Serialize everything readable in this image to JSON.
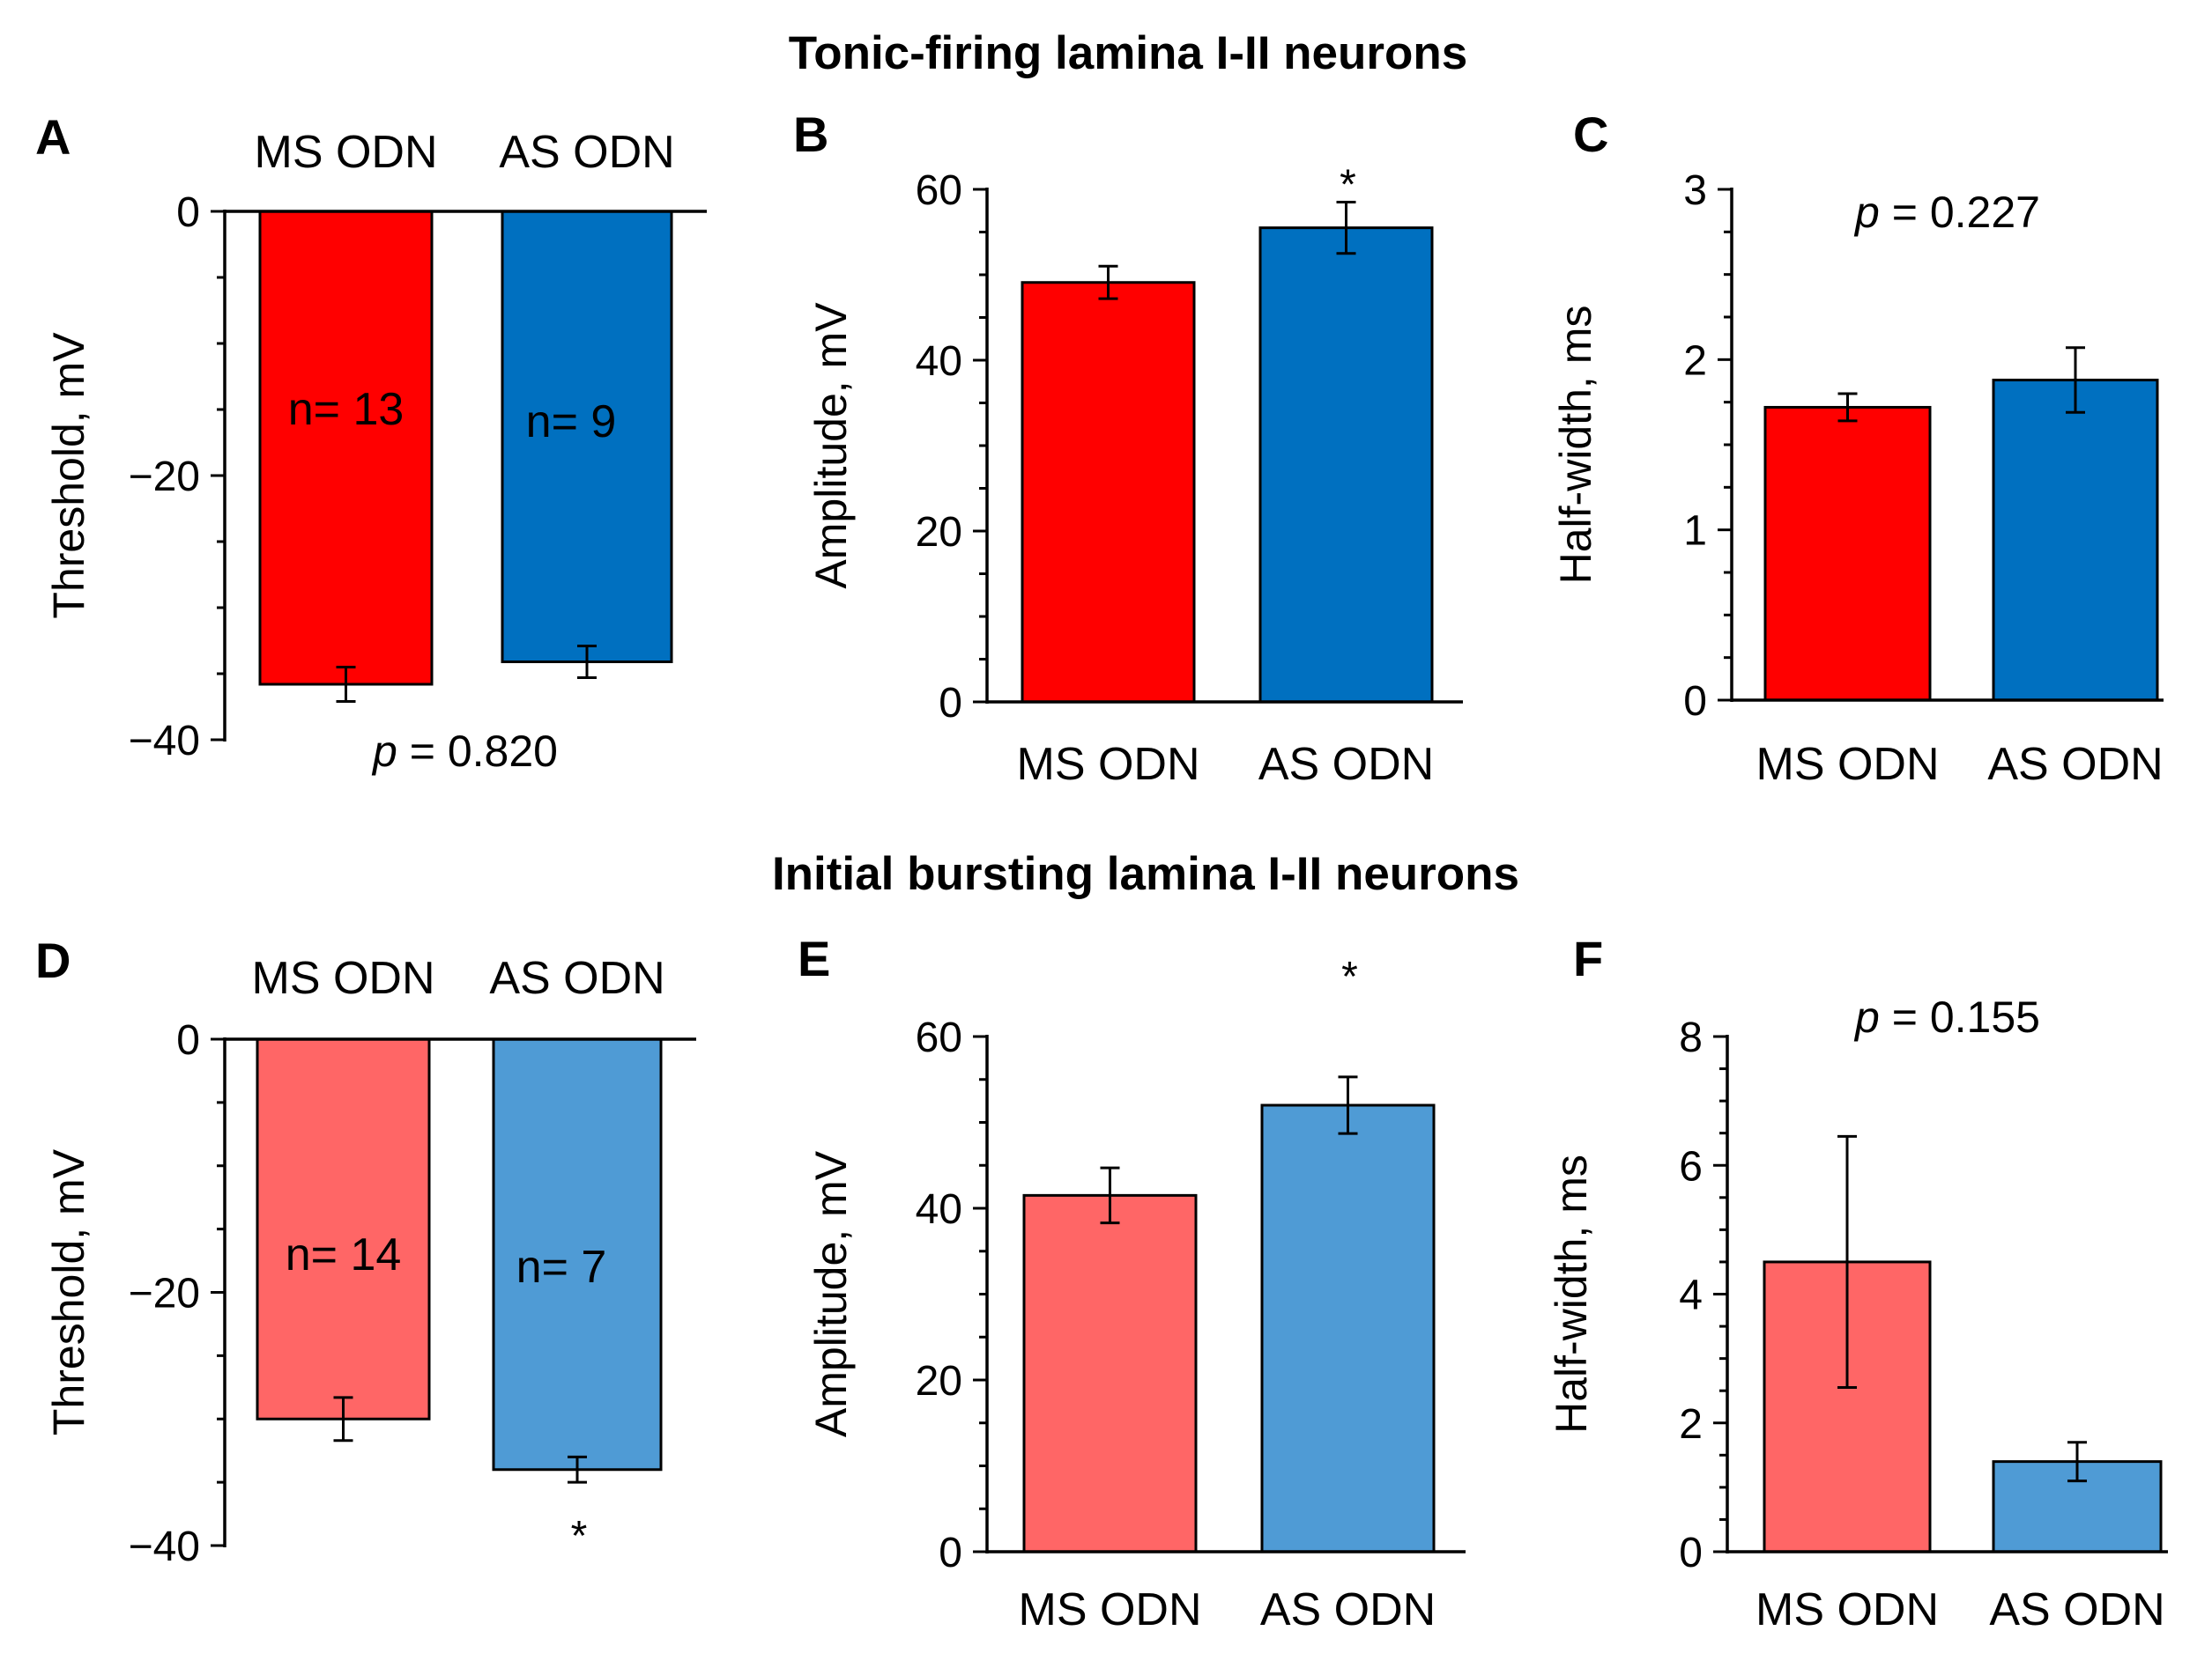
{
  "row_titles": [
    "Tonic-firing lamina I-II neurons",
    "Initial bursting lamina I-II neurons"
  ],
  "colors": {
    "ms_strong": "#ff0000",
    "as_strong": "#0070c0",
    "ms_light": "#ff6666",
    "as_light": "#4f9bd5",
    "axis": "#000000"
  },
  "chart_data": [
    {
      "panel": "A",
      "type": "bar",
      "orientation": "down",
      "categories": [
        "MS ODN",
        "AS ODN"
      ],
      "values": [
        -35.8,
        -34.1
      ],
      "errors": [
        1.3,
        1.2
      ],
      "ylim": [
        -40,
        0
      ],
      "yticks": [
        0,
        -20,
        -40
      ],
      "tick_labels": [
        "0",
        "−20",
        "−40"
      ],
      "ylabel": "Threshold, mV",
      "n_labels": [
        "n= 13",
        "n= 9"
      ],
      "stat": {
        "p": "p",
        "rest": " = 0.820"
      },
      "stars": [
        "",
        ""
      ],
      "palette": "strong"
    },
    {
      "panel": "B",
      "type": "bar",
      "orientation": "up",
      "categories": [
        "MS ODN",
        "AS ODN"
      ],
      "values": [
        49.1,
        55.5
      ],
      "errors": [
        1.9,
        3.0
      ],
      "ylim": [
        0,
        60
      ],
      "yticks": [
        0,
        20,
        40,
        60
      ],
      "tick_labels": [
        "0",
        "20",
        "40",
        "60"
      ],
      "ylabel": "Amplitude, mV",
      "stars": [
        "",
        "*"
      ],
      "palette": "strong"
    },
    {
      "panel": "C",
      "type": "bar",
      "orientation": "up",
      "categories": [
        "MS ODN",
        "AS ODN"
      ],
      "values": [
        1.72,
        1.88
      ],
      "errors": [
        0.08,
        0.19
      ],
      "ylim": [
        0,
        3
      ],
      "yticks": [
        0,
        1,
        2,
        3
      ],
      "tick_labels": [
        "0",
        "1",
        "2",
        "3"
      ],
      "ylabel": "Half-width, ms",
      "stat": {
        "p": "p",
        "rest": " = 0.227"
      },
      "stars": [
        "",
        ""
      ],
      "palette": "strong"
    },
    {
      "panel": "D",
      "type": "bar",
      "orientation": "down",
      "categories": [
        "MS ODN",
        "AS ODN"
      ],
      "values": [
        -30.0,
        -34.0
      ],
      "errors": [
        1.7,
        1.0
      ],
      "ylim": [
        -40,
        0
      ],
      "yticks": [
        0,
        -20,
        -40
      ],
      "tick_labels": [
        "0",
        "−20",
        "−40"
      ],
      "ylabel": "Threshold, mV",
      "n_labels": [
        "n= 14",
        "n= 7"
      ],
      "stars": [
        "",
        "*"
      ],
      "palette": "light"
    },
    {
      "panel": "E",
      "type": "bar",
      "orientation": "up",
      "categories": [
        "MS ODN",
        "AS ODN"
      ],
      "values": [
        41.5,
        52.0
      ],
      "errors": [
        3.2,
        3.3
      ],
      "ylim": [
        0,
        60
      ],
      "yticks": [
        0,
        20,
        40,
        60
      ],
      "tick_labels": [
        "0",
        "20",
        "40",
        "60"
      ],
      "ylabel": "Amplitude, mV",
      "stars": [
        "",
        "*"
      ],
      "palette": "light"
    },
    {
      "panel": "F",
      "type": "bar",
      "orientation": "up",
      "categories": [
        "MS ODN",
        "AS ODN"
      ],
      "values": [
        4.5,
        1.4
      ],
      "errors": [
        1.95,
        0.3
      ],
      "ylim": [
        0,
        8
      ],
      "yticks": [
        0,
        2,
        4,
        6,
        8
      ],
      "tick_labels": [
        "0",
        "2",
        "4",
        "6",
        "8"
      ],
      "ylabel": "Half-width, ms",
      "stat": {
        "p": "p",
        "rest": " = 0.155"
      },
      "stars": [
        "",
        ""
      ],
      "palette": "light"
    }
  ]
}
